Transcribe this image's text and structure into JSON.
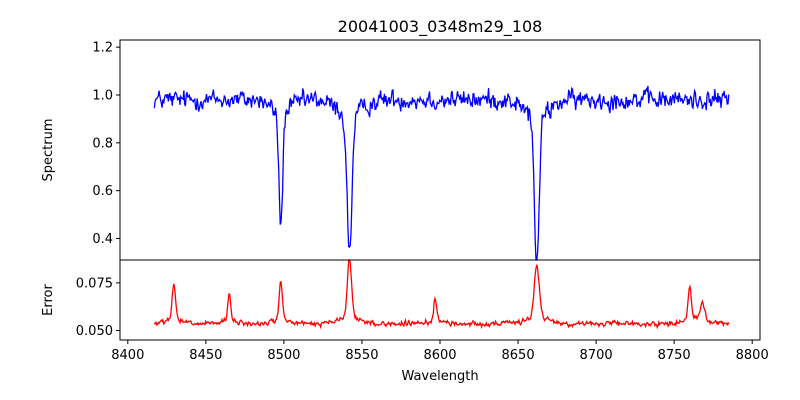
{
  "chart_data": {
    "type": "line",
    "title": "20041003_0348m29_108",
    "xlabel": "Wavelength",
    "xlim": [
      8395,
      8805
    ],
    "x_ticks": [
      8400,
      8450,
      8500,
      8550,
      8600,
      8650,
      8700,
      8750,
      8800
    ],
    "x_tick_labels": [
      "8400",
      "8450",
      "8500",
      "8550",
      "8600",
      "8650",
      "8700",
      "8750",
      "8800"
    ],
    "x_range": [
      8417,
      8785
    ],
    "grid": false,
    "panels": [
      {
        "ylabel": "Spectrum",
        "ylim": [
          0.31,
          1.23
        ],
        "y_ticks": [
          0.4,
          0.6,
          0.8,
          1.0,
          1.2
        ],
        "y_tick_labels": [
          "0.4",
          "0.6",
          "0.8",
          "1.0",
          "1.2"
        ],
        "series": [
          {
            "color": "#0000ff",
            "baseline": 0.98,
            "noise": 0.055,
            "features": [
              {
                "center": 8498.0,
                "depth": 0.47,
                "width": 1.2
              },
              {
                "center": 8542.0,
                "depth": 0.56,
                "width": 1.6
              },
              {
                "center": 8662.0,
                "depth": 0.62,
                "width": 1.5
              }
            ]
          }
        ]
      },
      {
        "ylabel": "Error",
        "ylim": [
          0.045,
          0.087
        ],
        "y_ticks": [
          0.05,
          0.075
        ],
        "y_tick_labels": [
          "0.050",
          "0.075"
        ],
        "series": [
          {
            "color": "#ff0000",
            "baseline": 0.0535,
            "noise": 0.0018,
            "features": [
              {
                "center": 8429.5,
                "depth": -0.019,
                "width": 1.0
              },
              {
                "center": 8465.0,
                "depth": -0.014,
                "width": 0.9
              },
              {
                "center": 8498.0,
                "depth": -0.02,
                "width": 1.0
              },
              {
                "center": 8542.0,
                "depth": -0.031,
                "width": 1.3
              },
              {
                "center": 8597.0,
                "depth": -0.012,
                "width": 1.0
              },
              {
                "center": 8662.0,
                "depth": -0.027,
                "width": 1.6
              },
              {
                "center": 8760.0,
                "depth": -0.017,
                "width": 1.0
              },
              {
                "center": 8768.0,
                "depth": -0.01,
                "width": 1.5
              }
            ]
          }
        ]
      }
    ]
  }
}
